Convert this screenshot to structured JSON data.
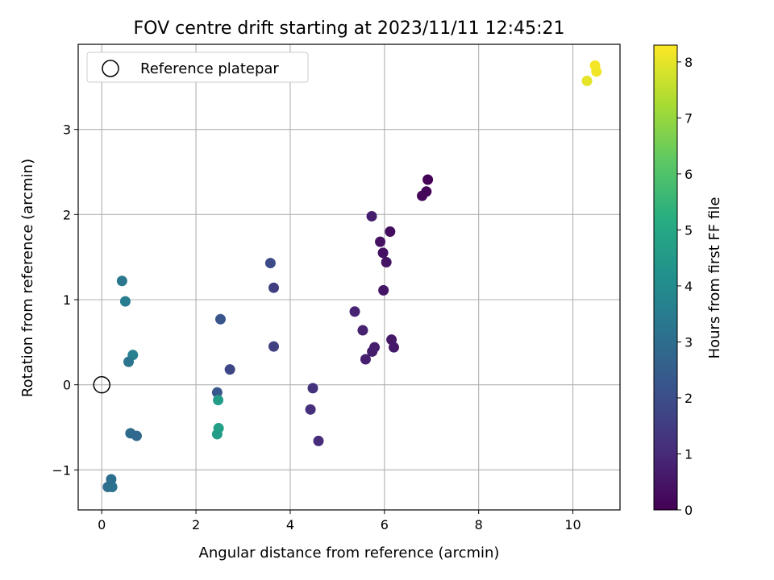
{
  "chart_data": {
    "type": "scatter",
    "title": "FOV centre drift starting at 2023/11/11 12:45:21",
    "xlabel": "Angular distance from reference (arcmin)",
    "ylabel": "Rotation from reference (arcmin)",
    "xlim": [
      -0.5,
      11.0
    ],
    "ylim": [
      -1.47,
      4.0
    ],
    "x_ticks": [
      0,
      2,
      4,
      6,
      8,
      10
    ],
    "y_ticks": [
      -1,
      0,
      1,
      2,
      3
    ],
    "grid": true,
    "legend": {
      "placement": "upper-left",
      "entries": [
        {
          "label": "Reference platepar",
          "marker": "hollow-circle"
        }
      ]
    },
    "reference_point": {
      "x": 0,
      "y": 0
    },
    "colorbar": {
      "label": "Hours from first FF file",
      "colormap": "viridis",
      "range": [
        0,
        8.3
      ],
      "ticks": [
        0,
        1,
        2,
        3,
        4,
        5,
        6,
        7,
        8
      ]
    },
    "points": [
      {
        "x": 6.92,
        "y": 2.41,
        "hours": 0.05
      },
      {
        "x": 6.89,
        "y": 2.27,
        "hours": 0.1
      },
      {
        "x": 6.8,
        "y": 2.22,
        "hours": 0.15
      },
      {
        "x": 6.12,
        "y": 1.8,
        "hours": 0.3
      },
      {
        "x": 5.91,
        "y": 1.68,
        "hours": 0.4
      },
      {
        "x": 5.73,
        "y": 1.98,
        "hours": 0.7
      },
      {
        "x": 5.97,
        "y": 1.55,
        "hours": 0.35
      },
      {
        "x": 6.04,
        "y": 1.44,
        "hours": 0.45
      },
      {
        "x": 5.98,
        "y": 1.11,
        "hours": 0.5
      },
      {
        "x": 5.37,
        "y": 0.86,
        "hours": 0.85
      },
      {
        "x": 5.54,
        "y": 0.64,
        "hours": 0.8
      },
      {
        "x": 6.15,
        "y": 0.53,
        "hours": 0.55
      },
      {
        "x": 6.2,
        "y": 0.44,
        "hours": 0.6
      },
      {
        "x": 5.79,
        "y": 0.44,
        "hours": 0.65
      },
      {
        "x": 5.74,
        "y": 0.39,
        "hours": 0.7
      },
      {
        "x": 5.6,
        "y": 0.3,
        "hours": 0.75
      },
      {
        "x": 4.48,
        "y": -0.04,
        "hours": 1.2
      },
      {
        "x": 4.43,
        "y": -0.29,
        "hours": 1.15
      },
      {
        "x": 4.6,
        "y": -0.66,
        "hours": 1.05
      },
      {
        "x": 3.58,
        "y": 1.43,
        "hours": 1.9
      },
      {
        "x": 3.65,
        "y": 1.14,
        "hours": 1.55
      },
      {
        "x": 3.65,
        "y": 0.45,
        "hours": 1.6
      },
      {
        "x": 2.52,
        "y": 0.77,
        "hours": 2.2
      },
      {
        "x": 2.72,
        "y": 0.18,
        "hours": 1.8
      },
      {
        "x": 2.45,
        "y": -0.09,
        "hours": 2.3
      },
      {
        "x": 2.47,
        "y": -0.18,
        "hours": 4.6
      },
      {
        "x": 2.48,
        "y": -0.51,
        "hours": 4.7
      },
      {
        "x": 2.45,
        "y": -0.58,
        "hours": 4.6
      },
      {
        "x": 0.43,
        "y": 1.22,
        "hours": 3.3
      },
      {
        "x": 0.5,
        "y": 0.98,
        "hours": 3.5
      },
      {
        "x": 0.66,
        "y": 0.35,
        "hours": 3.6
      },
      {
        "x": 0.57,
        "y": 0.27,
        "hours": 3.25
      },
      {
        "x": 0.61,
        "y": -0.57,
        "hours": 2.9
      },
      {
        "x": 0.74,
        "y": -0.6,
        "hours": 2.85
      },
      {
        "x": 0.2,
        "y": -1.11,
        "hours": 3.05
      },
      {
        "x": 0.13,
        "y": -1.2,
        "hours": 3.0
      },
      {
        "x": 0.22,
        "y": -1.2,
        "hours": 3.1
      },
      {
        "x": 10.47,
        "y": 3.75,
        "hours": 8.2
      },
      {
        "x": 10.5,
        "y": 3.68,
        "hours": 8.15
      },
      {
        "x": 10.3,
        "y": 3.57,
        "hours": 8.0
      }
    ]
  }
}
